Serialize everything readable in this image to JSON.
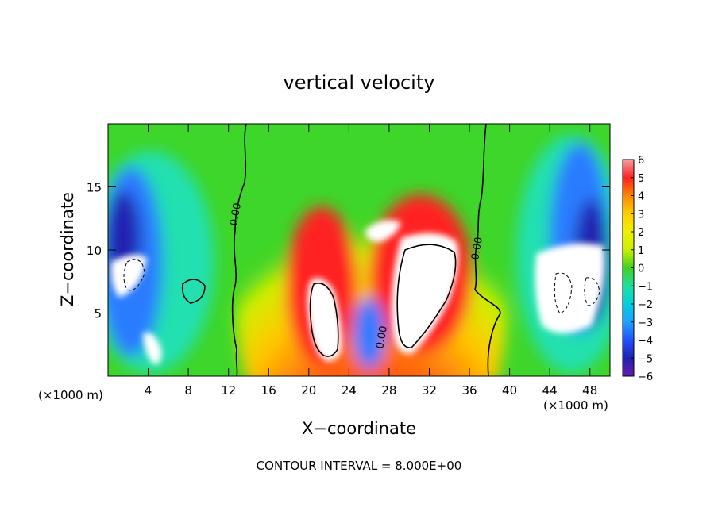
{
  "chart_data": {
    "type": "heatmap",
    "title": "vertical velocity",
    "xlabel": "X−coordinate",
    "ylabel": "Z−coordinate",
    "x_unit_left": "(×1000 m)",
    "x_unit_right": "(×1000 m)",
    "footer": "CONTOUR INTERVAL = 8.000E+00",
    "xlim": [
      0,
      50
    ],
    "ylim": [
      0,
      20
    ],
    "x_ticks": [
      4,
      8,
      12,
      16,
      20,
      24,
      28,
      32,
      36,
      40,
      44,
      48
    ],
    "x_tick_labels": [
      "4",
      "8",
      "12",
      "16",
      "20",
      "24",
      "28",
      "32",
      "36",
      "40",
      "44",
      "48"
    ],
    "y_ticks": [
      5,
      10,
      15
    ],
    "y_tick_labels": [
      "5",
      "10",
      "15"
    ],
    "zero_contour_labels": [
      "0.00",
      "0.00",
      "0.00"
    ],
    "colorbar": {
      "range": [
        -6,
        6
      ],
      "tick_labels": [
        "6",
        "5",
        "4",
        "3",
        "2",
        "1",
        "0",
        "−1",
        "−2",
        "−3",
        "−4",
        "−5",
        "−6"
      ],
      "colors": [
        "#f0a0a0",
        "#ff2020",
        "#ff8800",
        "#ffd000",
        "#f0f000",
        "#c8f000",
        "#40d020",
        "#20e0a0",
        "#00d0e0",
        "#20a0ff",
        "#2050ff",
        "#2020b0",
        "#6a1bb0"
      ]
    },
    "updrafts": [
      {
        "x_center": 21,
        "z_center": 6,
        "note": "strong updraft core (white, > 6)"
      },
      {
        "x_center": 30,
        "z_center": 7.5,
        "note": "strong updraft core (white, > 6)"
      },
      {
        "x_center": 22,
        "z_center": 12,
        "note": "broad positive region (red)"
      }
    ],
    "downdrafts": [
      {
        "x_center": 3,
        "z_center": 8,
        "note": "downdraft region (blue)"
      },
      {
        "x_center": 46,
        "z_center": 8,
        "note": "downdraft region (blue)"
      }
    ]
  }
}
